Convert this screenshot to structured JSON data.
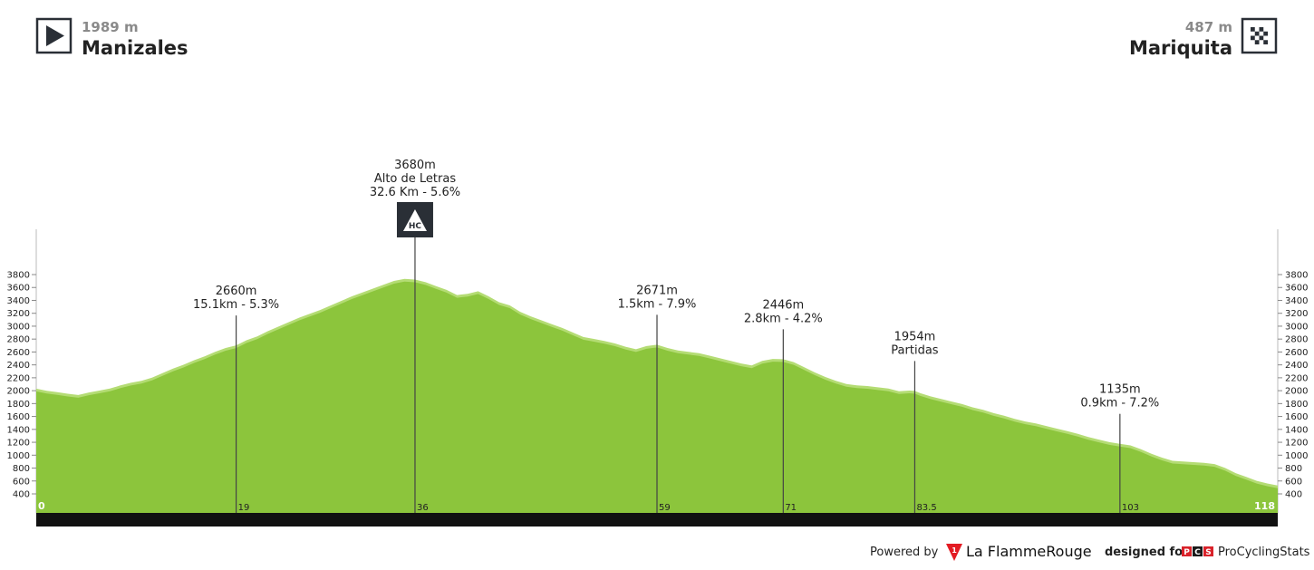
{
  "header": {
    "start": {
      "elevation": "1989 m",
      "name": "Manizales",
      "icon": "play-icon"
    },
    "finish": {
      "elevation": "487 m",
      "name": "Mariquita",
      "icon": "checkered-flag-icon"
    }
  },
  "footer": {
    "powered_by": "Powered by",
    "lfr_brand": "La FlammeRouge",
    "lfr_badge": "1",
    "designed_for": "designed for",
    "pcs_letters": [
      "P",
      "C",
      "S"
    ],
    "pcs_name": "ProCyclingStats"
  },
  "chart_data": {
    "type": "area",
    "title": "",
    "xlabel": "",
    "ylabel": "",
    "xlim": [
      0,
      118
    ],
    "ylim": [
      400,
      3800
    ],
    "yticks": [
      400,
      600,
      800,
      1000,
      1200,
      1400,
      1600,
      1800,
      2000,
      2200,
      2400,
      2600,
      2800,
      3000,
      3200,
      3400,
      3600,
      3800
    ],
    "xticks": [
      "0",
      "19",
      "36",
      "59",
      "71",
      "83.5",
      "103",
      "118"
    ],
    "grid": false,
    "colors": {
      "fill": "#8cc53c",
      "light": "#b4dc74",
      "bar": "#111111"
    },
    "profile": {
      "x": [
        0,
        1,
        2,
        3,
        4,
        5,
        6,
        7,
        8,
        9,
        10,
        11,
        12,
        13,
        14,
        15,
        16,
        17,
        18,
        19,
        20,
        21,
        22,
        23,
        24,
        25,
        26,
        27,
        28,
        29,
        30,
        31,
        32,
        33,
        34,
        35,
        36,
        37,
        38,
        39,
        40,
        41,
        42,
        43,
        44,
        45,
        46,
        47,
        48,
        49,
        50,
        51,
        52,
        53,
        54,
        55,
        56,
        57,
        58,
        59,
        60,
        61,
        62,
        63,
        64,
        65,
        66,
        67,
        68,
        69,
        70,
        71,
        72,
        73,
        74,
        75,
        76,
        77,
        78,
        79,
        80,
        81,
        82,
        83,
        83.5,
        84,
        85,
        86,
        87,
        88,
        89,
        90,
        91,
        92,
        93,
        94,
        95,
        96,
        97,
        98,
        99,
        100,
        101,
        102,
        103,
        104,
        105,
        106,
        107,
        108,
        109,
        110,
        111,
        112,
        113,
        114,
        115,
        116,
        117,
        118
      ],
      "y": [
        1989,
        1955,
        1935,
        1910,
        1890,
        1930,
        1960,
        1990,
        2040,
        2080,
        2110,
        2160,
        2230,
        2300,
        2360,
        2430,
        2490,
        2560,
        2620,
        2660,
        2740,
        2800,
        2880,
        2950,
        3020,
        3090,
        3150,
        3210,
        3280,
        3350,
        3420,
        3480,
        3540,
        3600,
        3660,
        3690,
        3680,
        3640,
        3580,
        3520,
        3440,
        3460,
        3500,
        3420,
        3330,
        3280,
        3180,
        3110,
        3050,
        2990,
        2930,
        2860,
        2790,
        2760,
        2730,
        2690,
        2640,
        2600,
        2650,
        2671,
        2620,
        2580,
        2560,
        2540,
        2500,
        2460,
        2420,
        2380,
        2350,
        2420,
        2450,
        2446,
        2400,
        2320,
        2240,
        2170,
        2110,
        2060,
        2040,
        2030,
        2010,
        1990,
        1950,
        1960,
        1954,
        1920,
        1870,
        1830,
        1790,
        1750,
        1700,
        1660,
        1610,
        1570,
        1520,
        1480,
        1450,
        1410,
        1370,
        1330,
        1290,
        1240,
        1200,
        1160,
        1135,
        1110,
        1050,
        980,
        920,
        870,
        860,
        850,
        840,
        820,
        760,
        680,
        620,
        560,
        520,
        487
      ]
    },
    "climbs": [
      {
        "km": 19,
        "label_top": "2660m",
        "label_bottom": "15.1km - 5.3%",
        "category": ""
      },
      {
        "km": 36,
        "label_top": "3680m",
        "label_mid": "Alto de Letras",
        "label_bottom": "32.6 Km - 5.6%",
        "category": "HC"
      },
      {
        "km": 59,
        "label_top": "2671m",
        "label_bottom": "1.5km - 7.9%",
        "category": ""
      },
      {
        "km": 71,
        "label_top": "2446m",
        "label_bottom": "2.8km - 4.2%",
        "category": ""
      },
      {
        "km": 83.5,
        "label_top": "1954m",
        "label_bottom": "Partidas",
        "category": ""
      },
      {
        "km": 103,
        "label_top": "1135m",
        "label_bottom": "0.9km - 7.2%",
        "category": ""
      }
    ]
  }
}
